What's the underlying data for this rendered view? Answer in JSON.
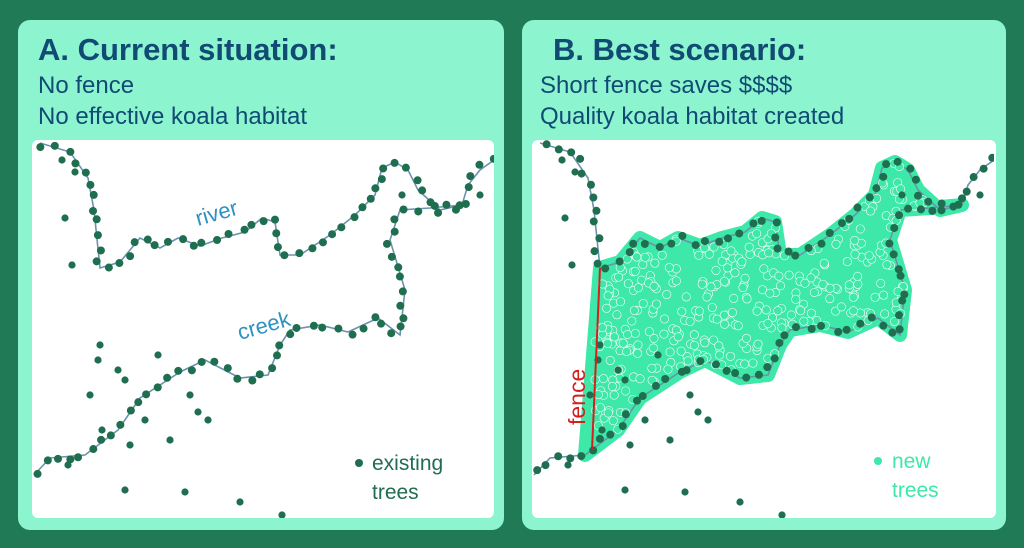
{
  "panels": [
    {
      "title": "A. Current situation:",
      "lines": [
        "No fence",
        "No effective koala habitat"
      ],
      "river": "river",
      "creek": "creek",
      "legend": [
        "existing",
        "trees"
      ]
    },
    {
      "title": "B. Best scenario:",
      "lines": [
        "Short fence saves $$$$",
        "Quality koala habitat created"
      ],
      "fence": "fence",
      "legend": [
        "new",
        "trees"
      ]
    }
  ]
}
